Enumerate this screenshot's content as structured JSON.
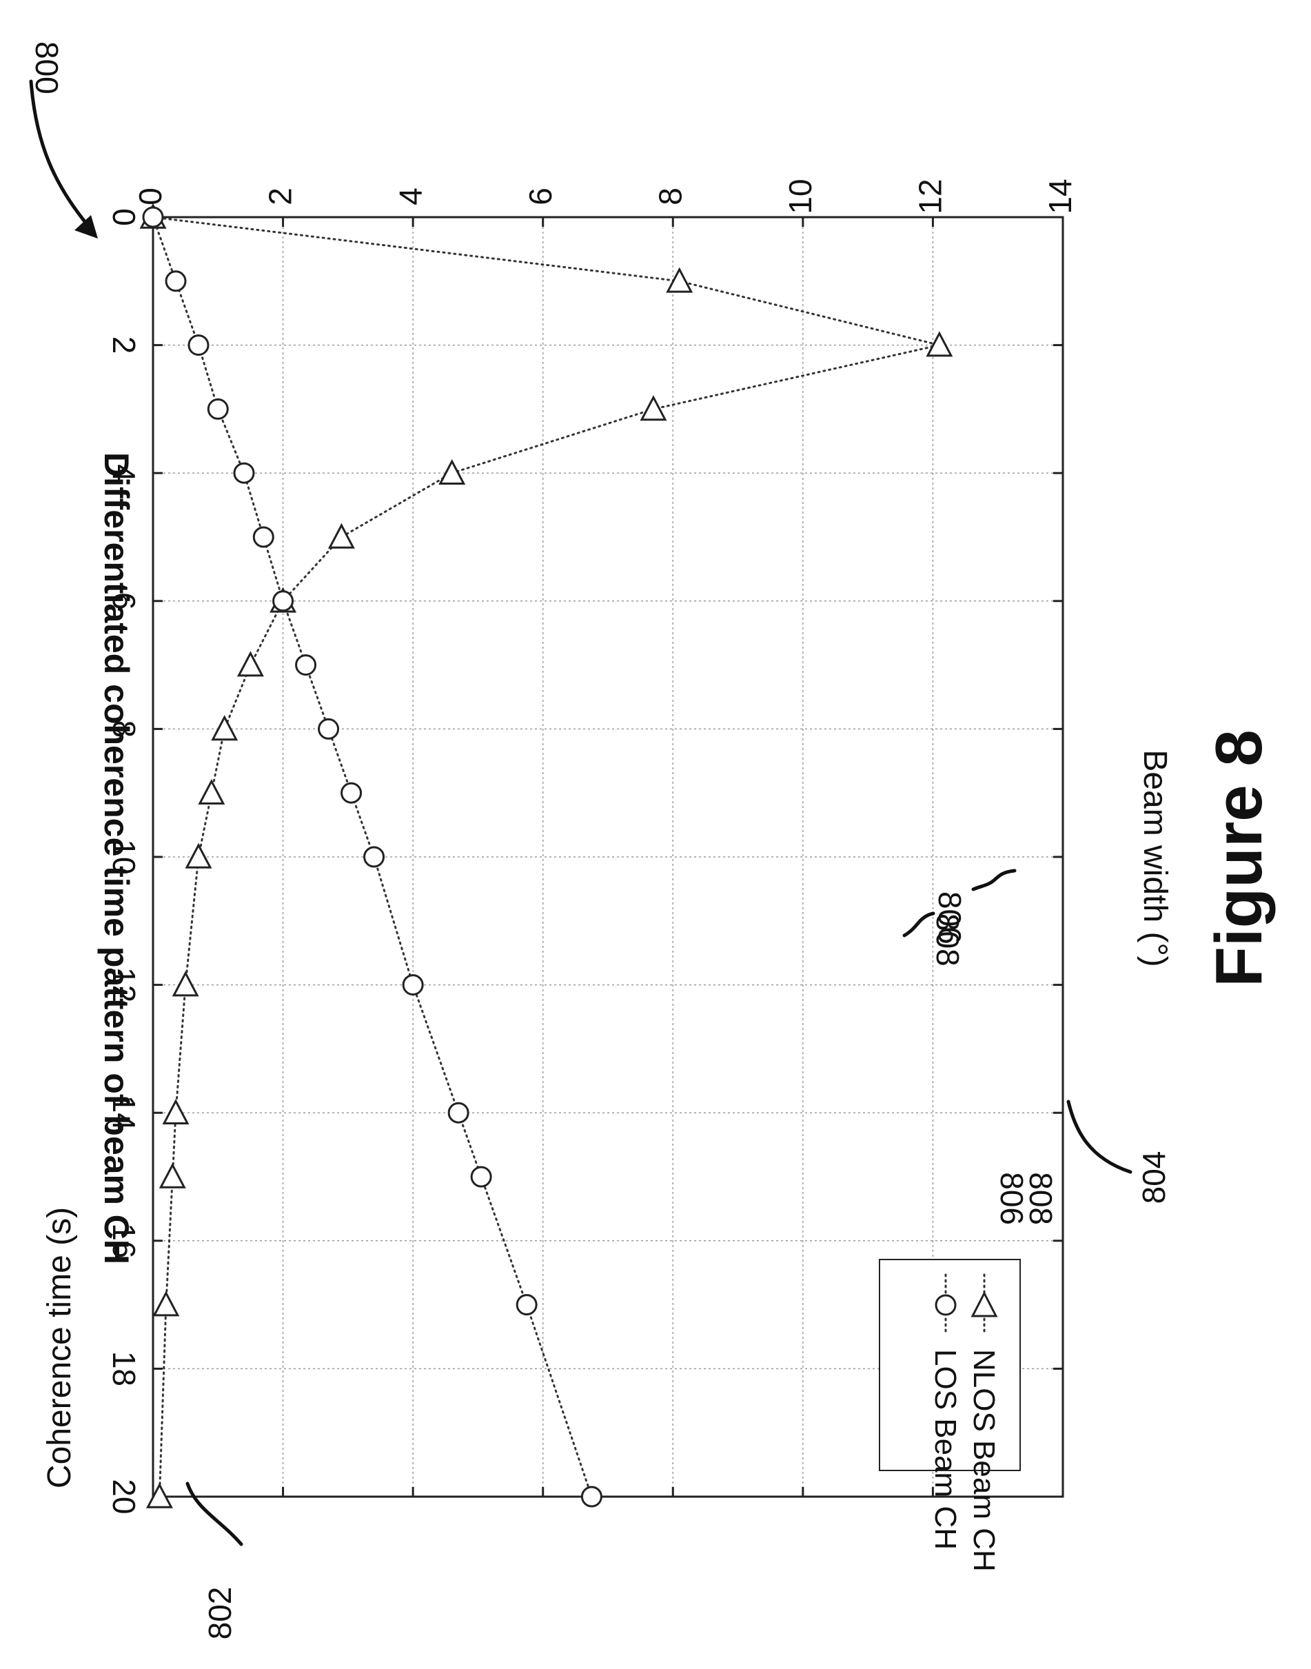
{
  "figure": {
    "ref_800": "800",
    "ref_802": "802",
    "ref_804": "804",
    "ref_806": "806",
    "ref_808": "808",
    "caption": "Figure 8"
  },
  "chart_data": {
    "type": "line",
    "title": "Differentiated coherence time pattern of beam CH",
    "xlabel": "Beam width (°)",
    "ylabel": "Coherence time (s)",
    "xlim": [
      0,
      20
    ],
    "ylim": [
      0,
      14
    ],
    "xticks": [
      "0",
      "2",
      "4",
      "6",
      "8",
      "10",
      "12",
      "14",
      "16",
      "18",
      "20"
    ],
    "yticks": [
      "0",
      "2",
      "4",
      "6",
      "8",
      "10",
      "12",
      "14"
    ],
    "grid": true,
    "legend_position": "top-right",
    "series": [
      {
        "name": "NLOS Beam CH",
        "ref": "808",
        "marker": "triangle-down",
        "x": [
          0,
          1,
          2,
          3,
          4,
          5,
          6,
          7,
          8,
          9,
          10,
          12,
          14,
          15,
          17,
          20
        ],
        "y": [
          0,
          8.1,
          12.1,
          7.7,
          4.6,
          2.9,
          2.0,
          1.5,
          1.1,
          0.9,
          0.7,
          0.5,
          0.35,
          0.3,
          0.2,
          0.1
        ]
      },
      {
        "name": "LOS Beam CH",
        "ref": "806",
        "marker": "circle",
        "x": [
          0,
          1,
          2,
          3,
          4,
          5,
          6,
          7,
          8,
          9,
          10,
          12,
          14,
          15,
          17,
          20
        ],
        "y": [
          0,
          0.35,
          0.7,
          1.0,
          1.4,
          1.7,
          2.0,
          2.35,
          2.7,
          3.05,
          3.4,
          4.0,
          4.7,
          5.05,
          5.75,
          6.75
        ]
      }
    ]
  }
}
